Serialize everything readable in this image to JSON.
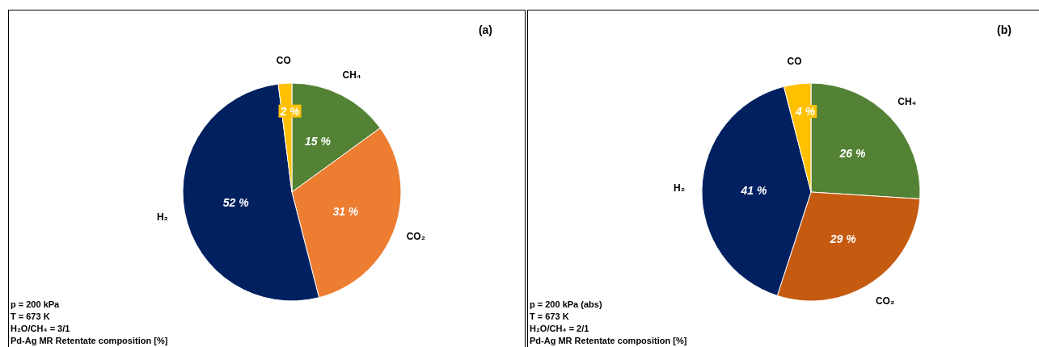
{
  "chart_data": [
    {
      "type": "pie",
      "title": "(a)",
      "categories": [
        "CH₄",
        "CO₂",
        "H₂",
        "CO"
      ],
      "values": [
        15,
        31,
        52,
        2
      ],
      "colors": [
        "#548235",
        "#ed7d31",
        "#002060",
        "#ffc000"
      ],
      "value_labels": [
        "15 %",
        "31 %",
        "52 %",
        "2 %"
      ],
      "annotations": [
        "p = 200 kPa",
        "T = 673 K",
        "H₂O/CH₄ = 3/1",
        "Pd-Ag MR Retentate composition [%]"
      ]
    },
    {
      "type": "pie",
      "title": "(b)",
      "categories": [
        "CH₄",
        "CO₂",
        "H₂",
        "CO"
      ],
      "values": [
        26,
        29,
        41,
        4
      ],
      "colors": [
        "#548235",
        "#c55a11",
        "#002060",
        "#ffc000"
      ],
      "value_labels": [
        "26 %",
        "29 %",
        "41 %",
        "4 %"
      ],
      "annotations": [
        "p = 200 kPa (abs)",
        "T = 673 K",
        "H₂O/CH₄ = 2/1",
        "Pd-Ag MR Retentate composition [%]"
      ]
    }
  ]
}
